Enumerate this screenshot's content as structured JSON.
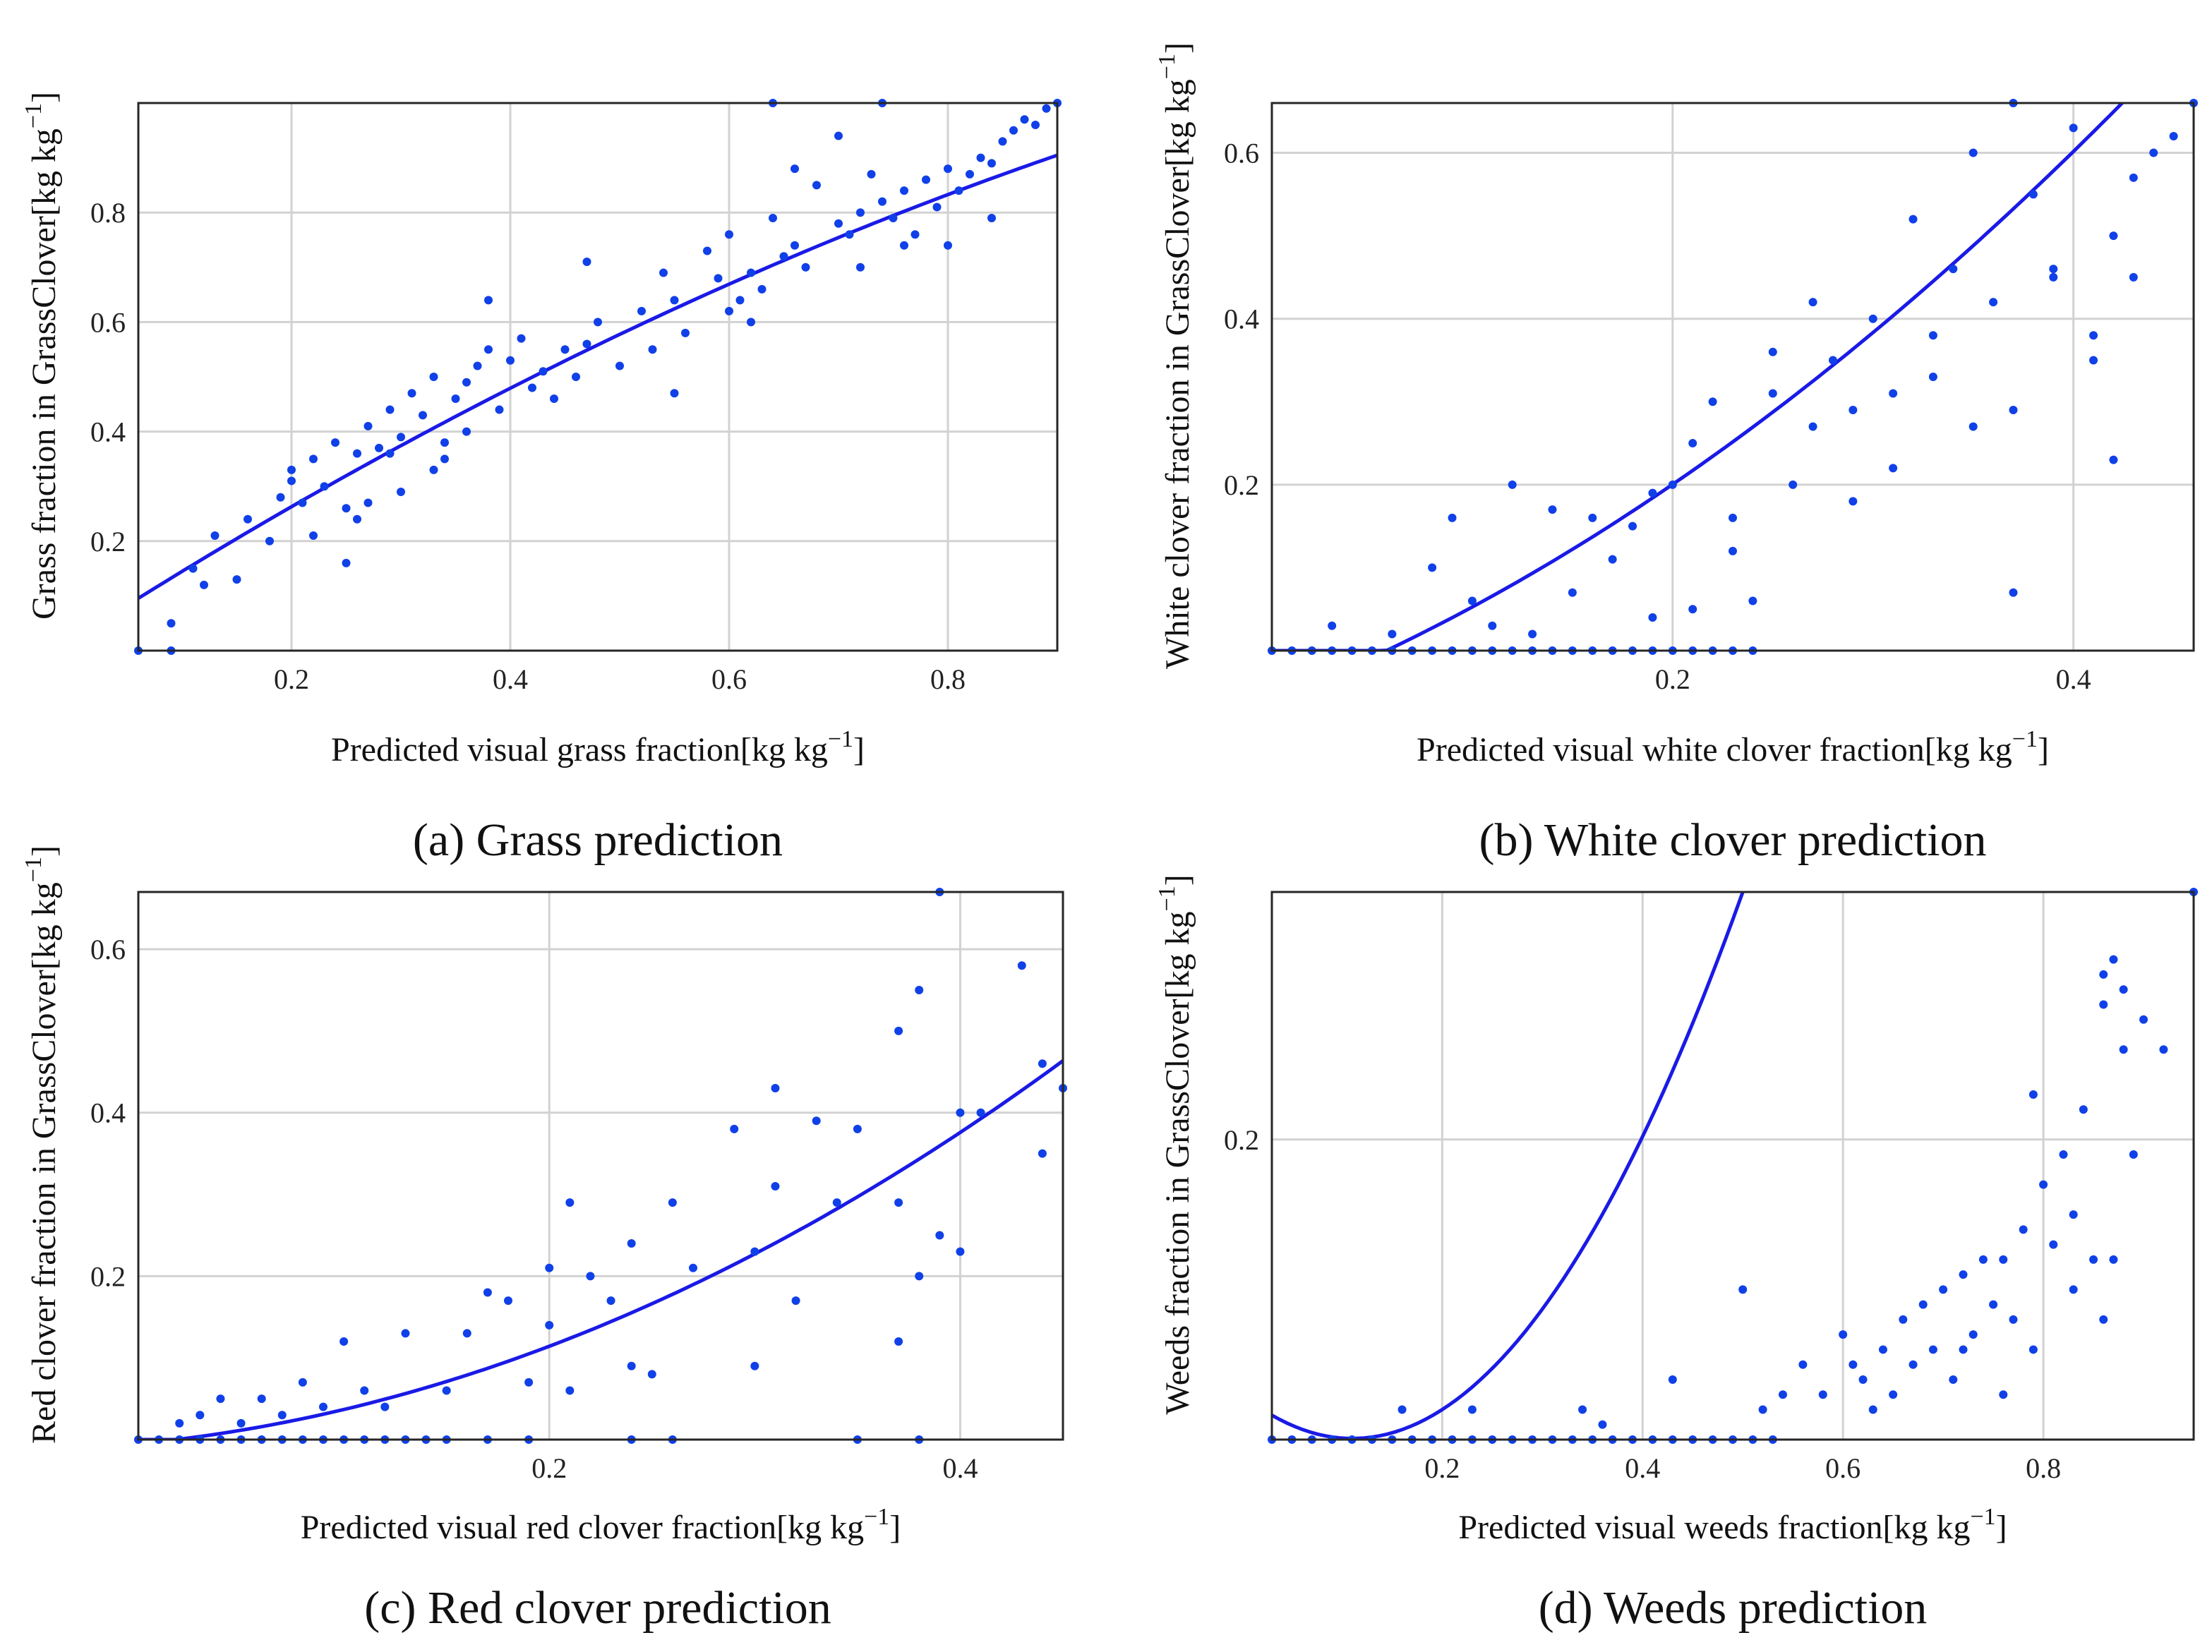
{
  "chart_data": [
    {
      "type": "scatter",
      "panel": "a",
      "caption": "(a) Grass prediction",
      "xlabel": "Predicted visual grass fraction",
      "ylabel": "Grass fraction in GrassClover",
      "unit_text": "[kg kg",
      "unit_exp": "−1",
      "unit_close": "]",
      "xlim": [
        0.06,
        0.9
      ],
      "ylim": [
        0.0,
        1.0
      ],
      "xticks": [
        0.2,
        0.4,
        0.6,
        0.8
      ],
      "yticks": [
        0.2,
        0.4,
        0.6,
        0.8
      ],
      "fit_type": "quadratic",
      "fit_coefficients": [
        0.02,
        1.28,
        -0.33
      ],
      "series": [
        {
          "name": "samples",
          "x": [
            0.06,
            0.09,
            0.09,
            0.11,
            0.12,
            0.13,
            0.15,
            0.16,
            0.18,
            0.19,
            0.2,
            0.21,
            0.22,
            0.23,
            0.24,
            0.25,
            0.26,
            0.27,
            0.28,
            0.29,
            0.3,
            0.31,
            0.32,
            0.33,
            0.34,
            0.35,
            0.36,
            0.37,
            0.38,
            0.39,
            0.4,
            0.41,
            0.42,
            0.43,
            0.44,
            0.45,
            0.46,
            0.47,
            0.48,
            0.5,
            0.52,
            0.53,
            0.54,
            0.55,
            0.56,
            0.58,
            0.59,
            0.6,
            0.61,
            0.62,
            0.63,
            0.64,
            0.65,
            0.66,
            0.67,
            0.68,
            0.7,
            0.71,
            0.72,
            0.73,
            0.74,
            0.75,
            0.76,
            0.77,
            0.78,
            0.79,
            0.8,
            0.81,
            0.82,
            0.83,
            0.84,
            0.85,
            0.86,
            0.87,
            0.88,
            0.89,
            0.9,
            0.64,
            0.74,
            0.2,
            0.22,
            0.25,
            0.27,
            0.3,
            0.33,
            0.36,
            0.26,
            0.29,
            0.34,
            0.38,
            0.47,
            0.55,
            0.6,
            0.62,
            0.66,
            0.7,
            0.72,
            0.76,
            0.8,
            0.84
          ],
          "y": [
            0.0,
            0.0,
            0.05,
            0.15,
            0.12,
            0.21,
            0.13,
            0.24,
            0.2,
            0.28,
            0.33,
            0.27,
            0.35,
            0.3,
            0.38,
            0.26,
            0.36,
            0.41,
            0.37,
            0.44,
            0.39,
            0.47,
            0.43,
            0.5,
            0.35,
            0.46,
            0.49,
            0.52,
            0.55,
            0.44,
            0.53,
            0.57,
            0.48,
            0.51,
            0.46,
            0.55,
            0.5,
            0.56,
            0.6,
            0.52,
            0.62,
            0.55,
            0.69,
            0.64,
            0.58,
            0.73,
            0.68,
            0.76,
            0.64,
            0.69,
            0.66,
            0.79,
            0.72,
            0.88,
            0.7,
            0.85,
            0.94,
            0.76,
            0.8,
            0.87,
            0.82,
            0.79,
            0.84,
            0.76,
            0.86,
            0.81,
            0.88,
            0.84,
            0.87,
            0.9,
            0.89,
            0.93,
            0.95,
            0.97,
            0.96,
            0.99,
            1.0,
            1.0,
            1.0,
            0.31,
            0.21,
            0.16,
            0.27,
            0.29,
            0.33,
            0.4,
            0.24,
            0.36,
            0.38,
            0.64,
            0.71,
            0.47,
            0.62,
            0.6,
            0.74,
            0.78,
            0.7,
            0.74,
            0.74,
            0.79
          ]
        }
      ]
    },
    {
      "type": "scatter",
      "panel": "b",
      "caption": "(b) White clover prediction",
      "xlabel": "Predicted visual white clover fraction",
      "ylabel": "White clover fraction in GrassClover",
      "unit_text": "[kg kg",
      "unit_exp": "−1",
      "unit_close": "]",
      "xlim": [
        0.0,
        0.46
      ],
      "ylim": [
        0.0,
        0.66
      ],
      "xticks": [
        0.2,
        0.4
      ],
      "yticks": [
        0.2,
        0.4,
        0.6
      ],
      "fit_type": "quadratic",
      "fit_coefficients": [
        -0.06,
        0.95,
        1.76
      ],
      "series": [
        {
          "name": "samples",
          "x": [
            0.0,
            0.01,
            0.02,
            0.03,
            0.04,
            0.05,
            0.06,
            0.07,
            0.08,
            0.09,
            0.1,
            0.11,
            0.12,
            0.13,
            0.14,
            0.15,
            0.16,
            0.17,
            0.18,
            0.19,
            0.2,
            0.21,
            0.22,
            0.23,
            0.24,
            0.03,
            0.06,
            0.08,
            0.09,
            0.1,
            0.12,
            0.14,
            0.16,
            0.18,
            0.19,
            0.2,
            0.21,
            0.22,
            0.23,
            0.24,
            0.25,
            0.26,
            0.27,
            0.28,
            0.29,
            0.3,
            0.31,
            0.32,
            0.33,
            0.34,
            0.35,
            0.36,
            0.37,
            0.38,
            0.39,
            0.4,
            0.41,
            0.42,
            0.43,
            0.44,
            0.45,
            0.46,
            0.11,
            0.13,
            0.15,
            0.17,
            0.19,
            0.21,
            0.23,
            0.25,
            0.27,
            0.29,
            0.31,
            0.33,
            0.35,
            0.37,
            0.39,
            0.41,
            0.43,
            0.37,
            0.42
          ],
          "y": [
            0.0,
            0.0,
            0.0,
            0.0,
            0.0,
            0.0,
            0.0,
            0.0,
            0.0,
            0.0,
            0.0,
            0.0,
            0.0,
            0.0,
            0.0,
            0.0,
            0.0,
            0.0,
            0.0,
            0.0,
            0.0,
            0.0,
            0.0,
            0.0,
            0.0,
            0.03,
            0.02,
            0.1,
            0.16,
            0.06,
            0.2,
            0.17,
            0.16,
            0.15,
            0.19,
            0.2,
            0.05,
            0.3,
            0.12,
            0.06,
            0.31,
            0.2,
            0.27,
            0.35,
            0.29,
            0.4,
            0.22,
            0.52,
            0.33,
            0.46,
            0.6,
            0.42,
            0.66,
            0.55,
            0.45,
            0.63,
            0.38,
            0.5,
            0.57,
            0.6,
            0.62,
            0.66,
            0.03,
            0.02,
            0.07,
            0.11,
            0.04,
            0.25,
            0.16,
            0.36,
            0.42,
            0.18,
            0.31,
            0.38,
            0.27,
            0.29,
            0.46,
            0.35,
            0.45,
            0.07,
            0.23
          ]
        }
      ]
    },
    {
      "type": "scatter",
      "panel": "c",
      "caption": "(c) Red clover prediction",
      "xlabel": "Predicted visual red clover fraction",
      "ylabel": "Red clover fraction in GrassClover",
      "unit_text": "[kg kg",
      "unit_exp": "−1",
      "unit_close": "]",
      "xlim": [
        0.0,
        0.45
      ],
      "ylim": [
        0.0,
        0.67
      ],
      "xticks": [
        0.2,
        0.4
      ],
      "yticks": [
        0.2,
        0.4,
        0.6
      ],
      "fit_type": "quadratic",
      "fit_coefficients": [
        -0.005,
        0.24,
        1.78
      ],
      "series": [
        {
          "name": "samples",
          "x": [
            0.0,
            0.01,
            0.02,
            0.03,
            0.04,
            0.05,
            0.06,
            0.07,
            0.08,
            0.09,
            0.1,
            0.11,
            0.12,
            0.13,
            0.14,
            0.15,
            0.17,
            0.19,
            0.24,
            0.26,
            0.35,
            0.38,
            0.02,
            0.03,
            0.04,
            0.05,
            0.06,
            0.07,
            0.08,
            0.09,
            0.1,
            0.11,
            0.12,
            0.13,
            0.15,
            0.16,
            0.17,
            0.18,
            0.19,
            0.2,
            0.21,
            0.22,
            0.23,
            0.24,
            0.25,
            0.26,
            0.27,
            0.29,
            0.3,
            0.31,
            0.32,
            0.33,
            0.34,
            0.35,
            0.37,
            0.38,
            0.39,
            0.4,
            0.41,
            0.43,
            0.44,
            0.45,
            0.37,
            0.39,
            0.4,
            0.44,
            0.21,
            0.2,
            0.24,
            0.3,
            0.31,
            0.37,
            0.38
          ],
          "y": [
            0.0,
            0.0,
            0.0,
            0.0,
            0.0,
            0.0,
            0.0,
            0.0,
            0.0,
            0.0,
            0.0,
            0.0,
            0.0,
            0.0,
            0.0,
            0.0,
            0.0,
            0.0,
            0.0,
            0.0,
            0.0,
            0.0,
            0.02,
            0.03,
            0.05,
            0.02,
            0.05,
            0.03,
            0.07,
            0.04,
            0.12,
            0.06,
            0.04,
            0.13,
            0.06,
            0.13,
            0.18,
            0.17,
            0.07,
            0.21,
            0.29,
            0.2,
            0.17,
            0.24,
            0.08,
            0.29,
            0.21,
            0.38,
            0.23,
            0.43,
            0.17,
            0.39,
            0.29,
            0.38,
            0.5,
            0.55,
            0.25,
            0.4,
            0.4,
            0.58,
            0.46,
            0.43,
            0.12,
            0.67,
            0.23,
            0.35,
            0.06,
            0.14,
            0.09,
            0.09,
            0.31,
            0.29,
            0.2
          ]
        }
      ]
    },
    {
      "type": "scatter",
      "panel": "d",
      "caption": "(d) Weeds prediction",
      "xlabel": "Predicted visual weeds fraction",
      "ylabel": "Weeds fraction in GrassClover",
      "unit_text": "[kg kg",
      "unit_exp": "−1",
      "unit_close": "]",
      "xlim": [
        0.03,
        0.95
      ],
      "ylim": [
        0.0,
        0.365
      ],
      "xticks": [
        0.2,
        0.4,
        0.6,
        0.8
      ],
      "yticks": [
        0.2
      ],
      "fit_type": "quadratic",
      "fit_coefficients": [
        0.03,
        -0.53,
        2.4
      ],
      "fit_range": [
        0.03,
        0.95
      ],
      "series": [
        {
          "name": "samples",
          "x": [
            0.03,
            0.05,
            0.07,
            0.09,
            0.11,
            0.13,
            0.15,
            0.17,
            0.19,
            0.21,
            0.23,
            0.25,
            0.27,
            0.29,
            0.31,
            0.33,
            0.35,
            0.37,
            0.39,
            0.41,
            0.43,
            0.45,
            0.47,
            0.49,
            0.51,
            0.53,
            0.16,
            0.23,
            0.34,
            0.36,
            0.43,
            0.5,
            0.52,
            0.54,
            0.56,
            0.58,
            0.6,
            0.61,
            0.62,
            0.63,
            0.64,
            0.65,
            0.66,
            0.67,
            0.68,
            0.69,
            0.7,
            0.71,
            0.72,
            0.73,
            0.74,
            0.75,
            0.76,
            0.77,
            0.78,
            0.79,
            0.8,
            0.81,
            0.82,
            0.83,
            0.84,
            0.85,
            0.86,
            0.87,
            0.88,
            0.89,
            0.9,
            0.92,
            0.95,
            0.79,
            0.83,
            0.86,
            0.88,
            0.86,
            0.87,
            0.76,
            0.72
          ],
          "y": [
            0.0,
            0.0,
            0.0,
            0.0,
            0.0,
            0.0,
            0.0,
            0.0,
            0.0,
            0.0,
            0.0,
            0.0,
            0.0,
            0.0,
            0.0,
            0.0,
            0.0,
            0.0,
            0.0,
            0.0,
            0.0,
            0.0,
            0.0,
            0.0,
            0.0,
            0.0,
            0.02,
            0.02,
            0.02,
            0.01,
            0.04,
            0.1,
            0.02,
            0.03,
            0.05,
            0.03,
            0.07,
            0.05,
            0.04,
            0.02,
            0.06,
            0.03,
            0.08,
            0.05,
            0.09,
            0.06,
            0.1,
            0.04,
            0.11,
            0.07,
            0.12,
            0.09,
            0.12,
            0.08,
            0.14,
            0.23,
            0.17,
            0.13,
            0.19,
            0.15,
            0.22,
            0.12,
            0.29,
            0.32,
            0.26,
            0.19,
            0.28,
            0.26,
            0.365,
            0.06,
            0.1,
            0.31,
            0.3,
            0.08,
            0.12,
            0.03,
            0.06
          ]
        }
      ]
    }
  ]
}
